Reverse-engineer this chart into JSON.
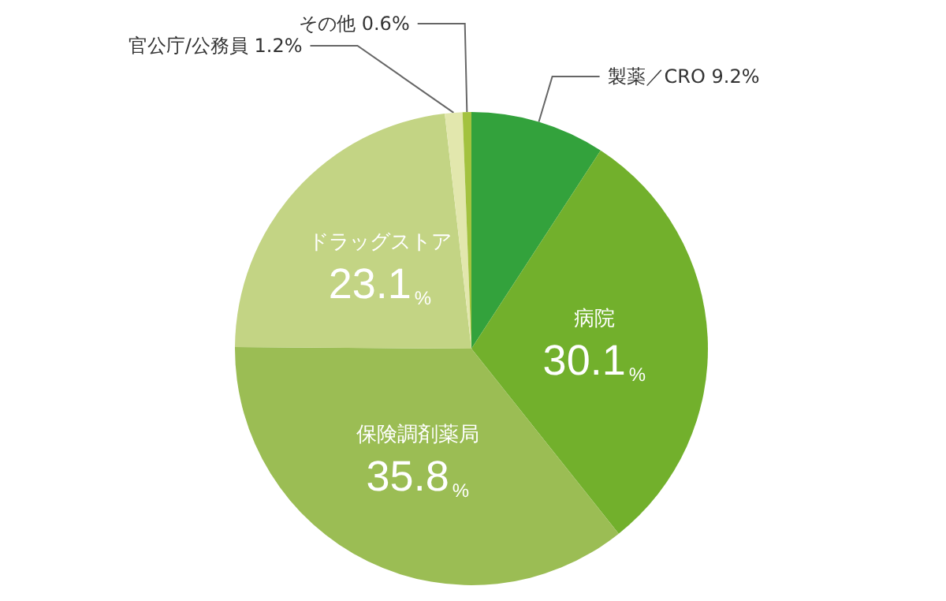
{
  "chart_data": {
    "type": "pie",
    "categories": [
      "製薬／CRO",
      "病院",
      "保険調剤薬局",
      "ドラッグストア",
      "官公庁/公務員",
      "その他"
    ],
    "values": [
      9.2,
      30.1,
      35.8,
      23.1,
      1.2,
      0.6
    ],
    "colors": [
      "#33a23c",
      "#72b02c",
      "#9bbd54",
      "#c3d484",
      "#e2e7ad",
      "#a3c23f"
    ],
    "value_labels": [
      "9.2%",
      "30.1%",
      "35.8%",
      "23.1%",
      "1.2%",
      "0.6%"
    ],
    "legend": false
  }
}
